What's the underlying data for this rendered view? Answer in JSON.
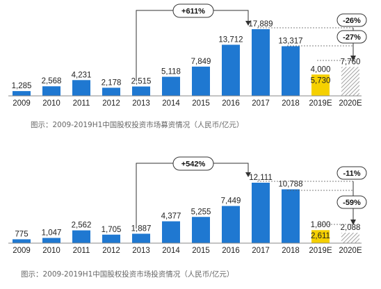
{
  "colors": {
    "bar": "#1f78d1",
    "highlight": "#f5d000",
    "hatch": "#8a8a8a",
    "text": "#222222",
    "caption": "#666666"
  },
  "chart_data": [
    {
      "type": "bar",
      "categories": [
        "2009",
        "2010",
        "2011",
        "2012",
        "2013",
        "2014",
        "2015",
        "2016",
        "2017",
        "2018",
        "2019E",
        "2020E"
      ],
      "values": [
        1285,
        2568,
        4231,
        2178,
        2515,
        5118,
        7849,
        13712,
        17889,
        13317,
        4000,
        7760
      ],
      "value_labels": [
        "1,285",
        "2,568",
        "4,231",
        "2,178",
        "2,515",
        "5,118",
        "7,849",
        "13,712",
        "17,889",
        "13,317",
        "4,000",
        "7,760"
      ],
      "h1_value": 5730,
      "h1_label": "5,730",
      "caption": "图示：2009-2019H1中国股权投资市场募资情况（人民币/亿元）",
      "annotations": {
        "growth": "+611%",
        "drop_2019": "-26%",
        "drop_2020": "-27%"
      },
      "ylim": [
        0,
        17889
      ]
    },
    {
      "type": "bar",
      "categories": [
        "2009",
        "2010",
        "2011",
        "2012",
        "2013",
        "2014",
        "2015",
        "2016",
        "2017",
        "2018",
        "2019E",
        "2020E"
      ],
      "values": [
        775,
        1047,
        2562,
        1705,
        1887,
        4377,
        5255,
        7449,
        12111,
        10788,
        1800,
        2088
      ],
      "value_labels": [
        "775",
        "1,047",
        "2,562",
        "1,705",
        "1,887",
        "4,377",
        "5,255",
        "7,449",
        "12,111",
        "10,788",
        "1,800",
        "2,088"
      ],
      "h1_value": 2611,
      "h1_label": "2,611",
      "caption": "图示：2009-2019H1中国股权投资市场投资情况（人民币/亿元）",
      "annotations": {
        "growth": "+542%",
        "drop_2019": "-11%",
        "drop_2020": "-59%"
      },
      "ylim": [
        0,
        12111
      ]
    }
  ]
}
